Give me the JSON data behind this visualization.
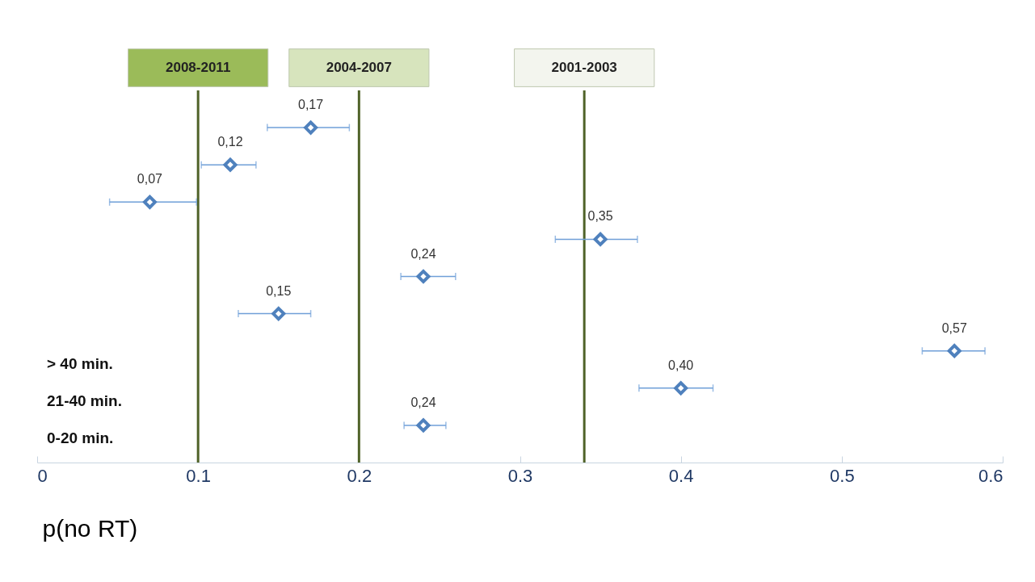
{
  "chart_data": {
    "type": "scatter",
    "xlabel": "p(no RT)",
    "orientation": "horizontal",
    "marker": "diamond",
    "color": "#4f81bd",
    "categories": [
      null,
      null,
      null,
      null,
      null,
      null,
      null,
      null,
      null
    ],
    "values": [
      0.17,
      0.12,
      0.07,
      0.35,
      0.24,
      0.15,
      0.57,
      0.4,
      0.24
    ],
    "errors": [
      [
        0.143,
        0.194
      ],
      [
        0.102,
        0.136
      ],
      [
        0.045,
        0.099
      ],
      [
        0.322,
        0.373
      ],
      [
        0.226,
        0.26
      ],
      [
        0.125,
        0.17
      ],
      [
        0.55,
        0.589
      ],
      [
        0.374,
        0.42
      ],
      [
        0.228,
        0.254
      ]
    ],
    "value_labels": [
      "0,17",
      "0,12",
      "0,07",
      "0,35",
      "0,24",
      "0,15",
      "0,57",
      "0,40",
      "0,24"
    ],
    "xlim": [
      0,
      0.6
    ],
    "xticks": [
      0,
      0.1,
      0.2,
      0.3,
      0.4,
      0.5,
      0.6
    ],
    "ref_lines": [
      {
        "axis": "x",
        "value": 0.1,
        "color": "#4f6228"
      },
      {
        "axis": "x",
        "value": 0.2,
        "color": "#4f6228"
      },
      {
        "axis": "x",
        "value": 0.34,
        "color": "#4f6228"
      }
    ],
    "annotations": [
      "2008-2011",
      "2004-2007",
      "2001-2003",
      "> 40 min.",
      "21-40 min.",
      "0-20 min."
    ]
  }
}
